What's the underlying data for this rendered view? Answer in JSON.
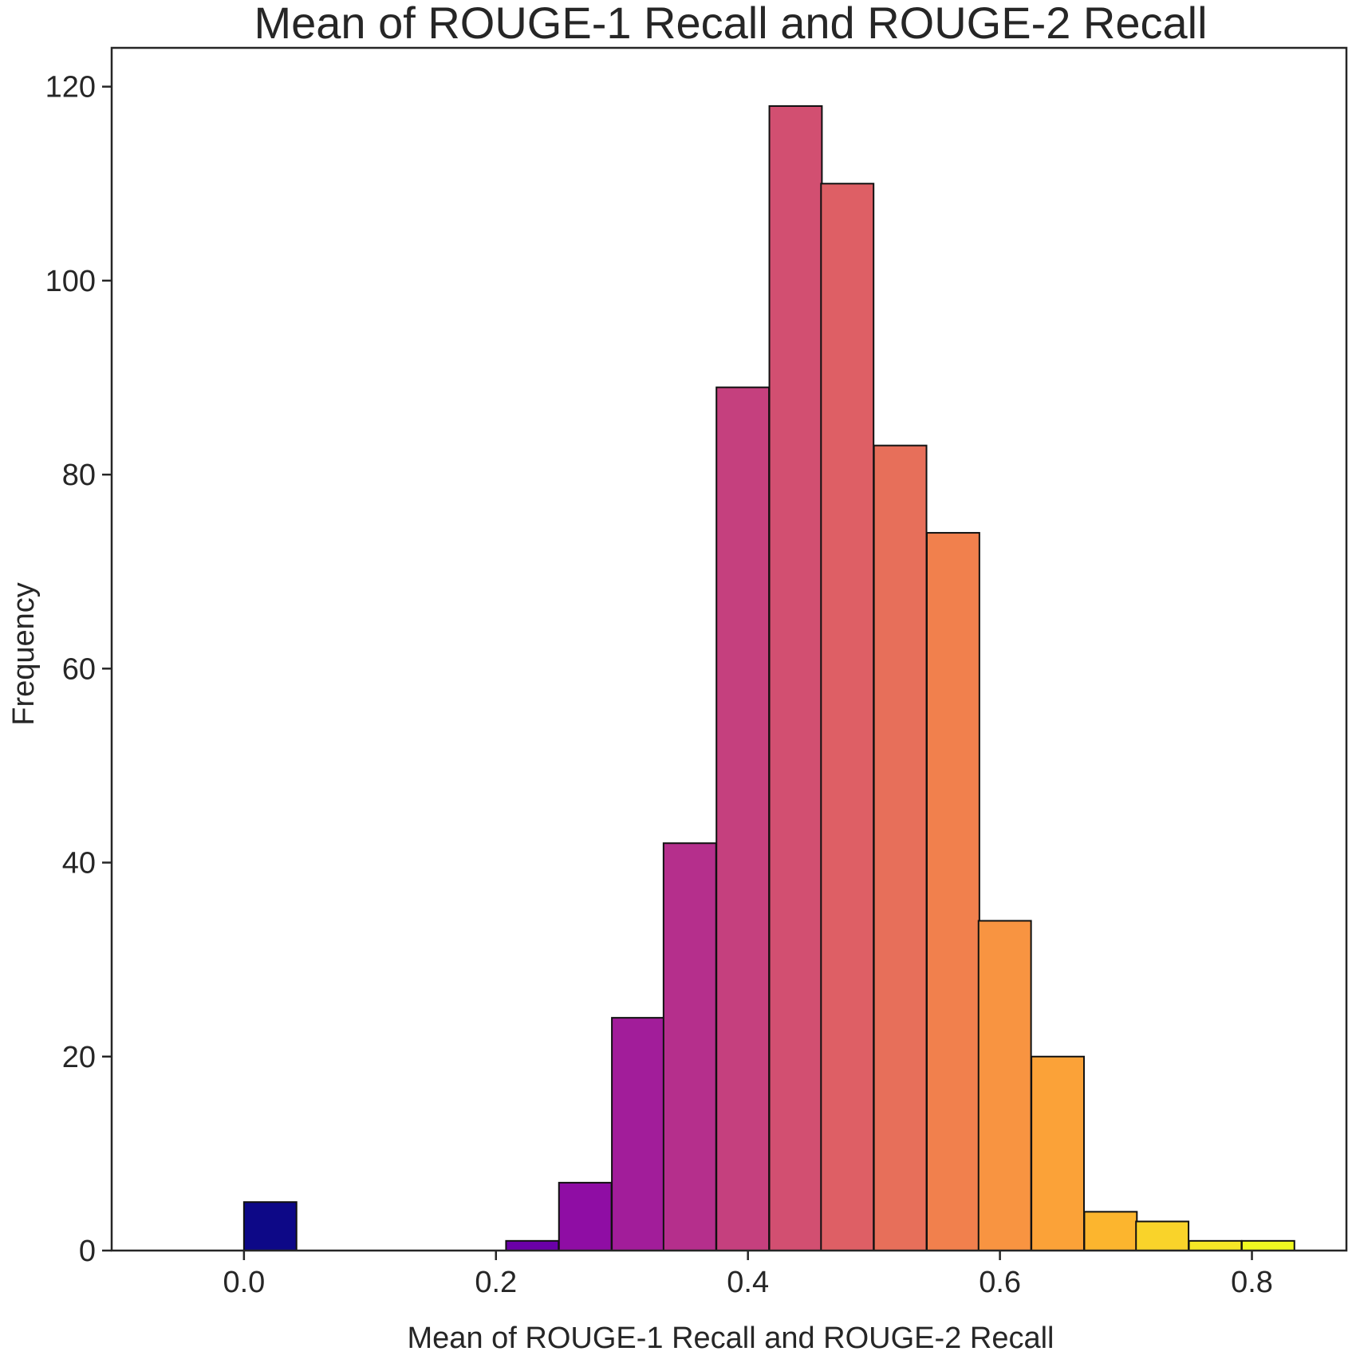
{
  "chart_data": {
    "type": "bar",
    "title": "Mean of ROUGE-1 Recall and ROUGE-2 Recall",
    "xlabel": "Mean of ROUGE-1 Recall and ROUGE-2 Recall",
    "ylabel": "Frequency",
    "xlim": [
      -0.105,
      0.875
    ],
    "ylim": [
      0,
      124
    ],
    "xticks": [
      0.0,
      0.2,
      0.4,
      0.6,
      0.8
    ],
    "xtick_labels": [
      "0.0",
      "0.2",
      "0.4",
      "0.6",
      "0.8"
    ],
    "yticks": [
      0,
      20,
      40,
      60,
      80,
      100,
      120
    ],
    "ytick_labels": [
      "0",
      "20",
      "40",
      "60",
      "80",
      "100",
      "120"
    ],
    "grid": false,
    "legend": "none",
    "colormap": "plasma",
    "bin_width": 0.0417,
    "bins": [
      {
        "x0": 0.0,
        "count": 5,
        "color": "#0d0887"
      },
      {
        "x0": 0.208,
        "count": 1,
        "color": "#6a00a8"
      },
      {
        "x0": 0.25,
        "count": 7,
        "color": "#8f0da4"
      },
      {
        "x0": 0.292,
        "count": 24,
        "color": "#a21d9a"
      },
      {
        "x0": 0.333,
        "count": 42,
        "color": "#b52f8c"
      },
      {
        "x0": 0.375,
        "count": 89,
        "color": "#c5407e"
      },
      {
        "x0": 0.417,
        "count": 118,
        "color": "#d24f71"
      },
      {
        "x0": 0.458,
        "count": 110,
        "color": "#de5f65"
      },
      {
        "x0": 0.5,
        "count": 83,
        "color": "#e76f5a"
      },
      {
        "x0": 0.542,
        "count": 74,
        "color": "#f1804d"
      },
      {
        "x0": 0.583,
        "count": 34,
        "color": "#f89441"
      },
      {
        "x0": 0.625,
        "count": 20,
        "color": "#fba238"
      },
      {
        "x0": 0.667,
        "count": 4,
        "color": "#fcb52e"
      },
      {
        "x0": 0.708,
        "count": 3,
        "color": "#f9d32a"
      },
      {
        "x0": 0.75,
        "count": 1,
        "color": "#f5e726"
      },
      {
        "x0": 0.792,
        "count": 1,
        "color": "#f0f921"
      }
    ]
  }
}
